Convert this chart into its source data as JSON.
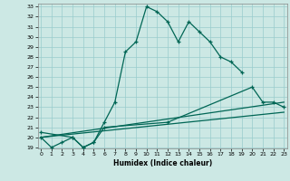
{
  "xlabel": "Humidex (Indice chaleur)",
  "bg_color": "#cce8e4",
  "grid_color": "#99cccc",
  "line_color": "#006655",
  "xlim": [
    0,
    23
  ],
  "ylim": [
    19,
    33
  ],
  "xticks": [
    0,
    1,
    2,
    3,
    4,
    5,
    6,
    7,
    8,
    9,
    10,
    11,
    12,
    13,
    14,
    15,
    16,
    17,
    18,
    19,
    20,
    21,
    22,
    23
  ],
  "yticks": [
    19,
    20,
    21,
    22,
    23,
    24,
    25,
    26,
    27,
    28,
    29,
    30,
    31,
    32,
    33
  ],
  "series1_x": [
    0,
    1,
    2,
    3,
    4,
    5,
    6,
    7,
    8,
    9,
    10,
    11,
    12,
    13,
    14,
    15,
    16,
    17,
    18,
    19
  ],
  "series1_y": [
    20.0,
    19.0,
    19.5,
    20.0,
    19.0,
    19.5,
    21.5,
    23.5,
    28.5,
    29.5,
    33.0,
    32.5,
    31.5,
    29.5,
    31.5,
    30.5,
    29.5,
    28.0,
    27.5,
    26.5
  ],
  "series2_x": [
    0,
    3,
    4,
    5,
    6,
    12,
    20,
    21,
    22,
    23
  ],
  "series2_y": [
    20.5,
    20.0,
    19.0,
    19.5,
    21.0,
    21.5,
    25.0,
    23.5,
    23.5,
    23.0
  ],
  "series3_x": [
    0,
    23
  ],
  "series3_y": [
    20.0,
    23.5
  ],
  "series4_x": [
    0,
    23
  ],
  "series4_y": [
    20.0,
    22.5
  ]
}
